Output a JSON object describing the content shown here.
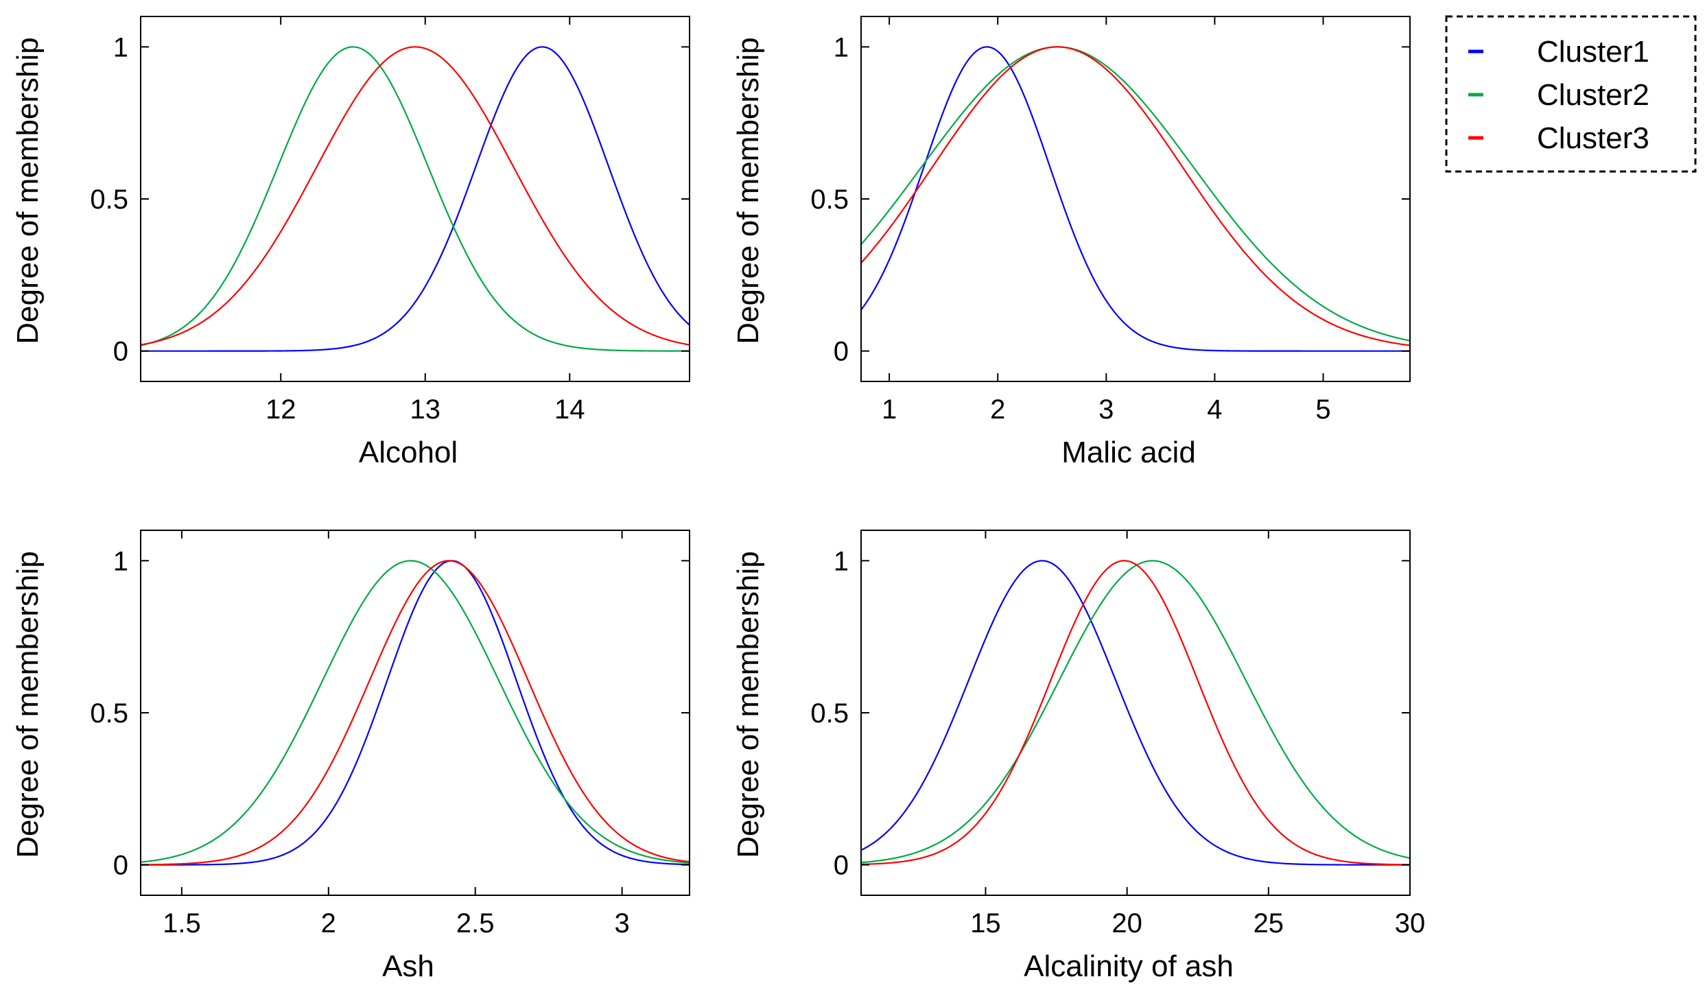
{
  "legend": {
    "placement": "top-right",
    "entries": [
      {
        "label": "Cluster1",
        "color": "#0000ff"
      },
      {
        "label": "Cluster2",
        "color": "#00aa44"
      },
      {
        "label": "Cluster3",
        "color": "#ff0000"
      }
    ]
  },
  "chart_data": [
    {
      "type": "line",
      "xlabel": "Alcohol",
      "ylabel": "Degree of membership",
      "xlim": [
        11.03,
        14.83
      ],
      "ylim": [
        -0.1,
        1.1
      ],
      "xticks": [
        12,
        13,
        14
      ],
      "yticks": [
        0,
        0.5,
        1
      ],
      "grid": false,
      "series": [
        {
          "name": "Cluster1",
          "color": "#0000ff",
          "center": 13.81,
          "sigma": 0.46
        },
        {
          "name": "Cluster2",
          "color": "#00aa44",
          "center": 12.5,
          "sigma": 0.52
        },
        {
          "name": "Cluster3",
          "color": "#ff0000",
          "center": 12.93,
          "sigma": 0.68
        }
      ]
    },
    {
      "type": "line",
      "xlabel": "Malic acid",
      "ylabel": "Degree of membership",
      "xlim": [
        0.74,
        5.8
      ],
      "ylim": [
        -0.1,
        1.1
      ],
      "xticks": [
        1,
        2,
        3,
        4,
        5
      ],
      "yticks": [
        0,
        0.5,
        1
      ],
      "grid": false,
      "series": [
        {
          "name": "Cluster1",
          "color": "#0000ff",
          "center": 1.9,
          "sigma": 0.58
        },
        {
          "name": "Cluster2",
          "color": "#00aa44",
          "center": 2.55,
          "sigma": 1.25
        },
        {
          "name": "Cluster3",
          "color": "#ff0000",
          "center": 2.55,
          "sigma": 1.15
        }
      ]
    },
    {
      "type": "line",
      "xlabel": "Ash",
      "ylabel": "Degree of membership",
      "xlim": [
        1.36,
        3.23
      ],
      "ylim": [
        -0.1,
        1.1
      ],
      "xticks": [
        1.5,
        2,
        2.5,
        3
      ],
      "yticks": [
        0,
        0.5,
        1
      ],
      "grid": false,
      "series": [
        {
          "name": "Cluster1",
          "color": "#0000ff",
          "center": 2.42,
          "sigma": 0.22
        },
        {
          "name": "Cluster2",
          "color": "#00aa44",
          "center": 2.28,
          "sigma": 0.3
        },
        {
          "name": "Cluster3",
          "color": "#ff0000",
          "center": 2.41,
          "sigma": 0.27
        }
      ]
    },
    {
      "type": "line",
      "xlabel": "Alcalinity of ash",
      "ylabel": "Degree of membership",
      "xlim": [
        10.6,
        30
      ],
      "ylim": [
        -0.1,
        1.1
      ],
      "xticks": [
        15,
        20,
        25,
        30
      ],
      "yticks": [
        0,
        0.5,
        1
      ],
      "grid": false,
      "series": [
        {
          "name": "Cluster1",
          "color": "#0000ff",
          "center": 17,
          "sigma": 2.6
        },
        {
          "name": "Cluster2",
          "color": "#00aa44",
          "center": 20.9,
          "sigma": 3.3
        },
        {
          "name": "Cluster3",
          "color": "#ff0000",
          "center": 19.9,
          "sigma": 2.6
        }
      ]
    }
  ]
}
